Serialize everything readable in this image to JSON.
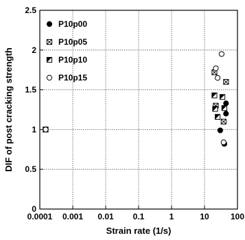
{
  "chart_data": {
    "type": "scatter",
    "title": "",
    "xlabel": "Strain rate (1/s)",
    "ylabel": "DIF of post cracking strength",
    "x_scale": "log",
    "xlim": [
      0.0001,
      100
    ],
    "ylim": [
      0,
      2.5
    ],
    "x_ticks": [
      {
        "value": 0.0001,
        "label": "0.0001"
      },
      {
        "value": 0.001,
        "label": "0.001"
      },
      {
        "value": 0.01,
        "label": "0.01"
      },
      {
        "value": 0.1,
        "label": "0.1"
      },
      {
        "value": 1,
        "label": "1"
      },
      {
        "value": 10,
        "label": "10"
      },
      {
        "value": 100,
        "label": "100"
      }
    ],
    "y_ticks": [
      {
        "value": 0,
        "label": "0"
      },
      {
        "value": 0.5,
        "label": "0.5"
      },
      {
        "value": 1,
        "label": "1"
      },
      {
        "value": 1.5,
        "label": "1.5"
      },
      {
        "value": 2,
        "label": "2"
      },
      {
        "value": 2.5,
        "label": "2.5"
      }
    ],
    "grid": true,
    "legend_position": "top-left",
    "series": [
      {
        "name": "P10p00",
        "marker": "filled-circle",
        "points": [
          [
            0.00015,
            1.0
          ],
          [
            30,
            0.99
          ],
          [
            45,
            1.33
          ],
          [
            45,
            1.2
          ],
          [
            40,
            0.82
          ]
        ]
      },
      {
        "name": "P10p05",
        "marker": "crossed-square",
        "points": [
          [
            0.00015,
            1.0
          ],
          [
            20,
            1.72
          ],
          [
            45,
            1.6
          ],
          [
            22,
            1.3
          ],
          [
            38,
            1.1
          ]
        ]
      },
      {
        "name": "P10p10",
        "marker": "half-filled-square",
        "points": [
          [
            0.00015,
            1.0
          ],
          [
            20,
            1.43
          ],
          [
            35,
            1.41
          ],
          [
            40,
            1.27
          ],
          [
            21,
            1.26
          ],
          [
            25,
            1.16
          ]
        ]
      },
      {
        "name": "P10p15",
        "marker": "open-circle",
        "points": [
          [
            0.00015,
            1.0
          ],
          [
            33,
            1.95
          ],
          [
            22,
            1.77
          ],
          [
            25,
            1.65
          ],
          [
            38,
            0.84
          ]
        ]
      }
    ]
  }
}
